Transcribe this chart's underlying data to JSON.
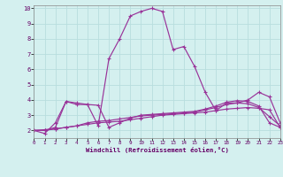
{
  "title": "",
  "xlabel": "Windchill (Refroidissement éolien,°C)",
  "xlim": [
    0,
    23
  ],
  "ylim": [
    1.5,
    10.2
  ],
  "xticks": [
    0,
    1,
    2,
    3,
    4,
    5,
    6,
    7,
    8,
    9,
    10,
    11,
    12,
    13,
    14,
    15,
    16,
    17,
    18,
    19,
    20,
    21,
    22,
    23
  ],
  "yticks": [
    2,
    3,
    4,
    5,
    6,
    7,
    8,
    9,
    10
  ],
  "background_color": "#d4f0ef",
  "line_color": "#993399",
  "grid_color": "#b8dede",
  "lines": [
    [
      2.0,
      1.8,
      2.5,
      3.9,
      3.8,
      3.7,
      2.3,
      6.7,
      8.0,
      9.5,
      9.8,
      10.0,
      9.8,
      7.3,
      7.5,
      6.2,
      4.5,
      3.3,
      3.8,
      3.8,
      4.0,
      4.5,
      4.2,
      2.5
    ],
    [
      2.0,
      2.0,
      2.1,
      2.2,
      2.3,
      2.4,
      2.5,
      2.55,
      2.6,
      2.7,
      2.8,
      2.9,
      3.0,
      3.05,
      3.1,
      3.15,
      3.2,
      3.3,
      3.4,
      3.45,
      3.5,
      3.45,
      3.35,
      2.2
    ],
    [
      2.0,
      2.0,
      2.2,
      3.9,
      3.7,
      3.7,
      3.65,
      2.2,
      2.5,
      2.8,
      3.0,
      3.05,
      3.1,
      3.15,
      3.2,
      3.25,
      3.4,
      3.6,
      3.85,
      3.95,
      3.9,
      3.6,
      2.5,
      2.2
    ],
    [
      2.0,
      2.05,
      2.1,
      2.2,
      2.3,
      2.5,
      2.6,
      2.65,
      2.75,
      2.85,
      2.95,
      3.0,
      3.05,
      3.1,
      3.15,
      3.2,
      3.35,
      3.5,
      3.7,
      3.8,
      3.75,
      3.5,
      2.9,
      2.3
    ]
  ]
}
